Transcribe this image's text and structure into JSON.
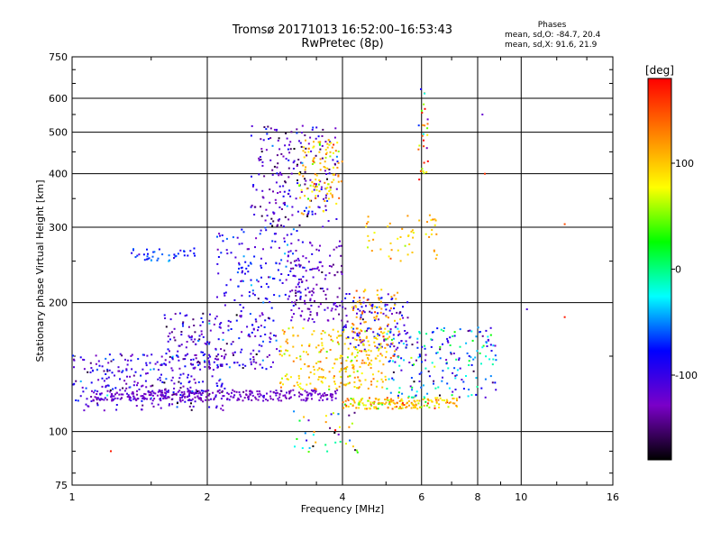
{
  "header": {
    "title": "Tromsø 20171013 16:52:00–16:53:43",
    "subtitle": "RwPretec (8p)",
    "stats_title": "Phases",
    "stats_line1": "mean, sd,O: -84.7, 20.4",
    "stats_line2": "mean, sd,X:  91.6, 21.9"
  },
  "chart_data": {
    "type": "scatter",
    "title": "Tromsø 20171013 16:52:00–16:53:43",
    "subtitle": "RwPretec (8p)",
    "xlabel": "Frequency [MHz]",
    "ylabel": "Stationary phase Virtual Height [km]",
    "x_scale": "log",
    "y_scale": "log",
    "xlim": [
      1,
      16
    ],
    "ylim": [
      75,
      750
    ],
    "grid": true,
    "x_ticks": [
      1,
      2,
      4,
      6,
      8,
      10,
      16
    ],
    "y_ticks": [
      75,
      100,
      200,
      300,
      400,
      500,
      600,
      750
    ],
    "x_tick_labels": [
      "1",
      "2",
      "4",
      "6",
      "8",
      "10",
      "16"
    ],
    "y_tick_labels": [
      "75",
      "100",
      "200",
      "300",
      "400",
      "500",
      "600",
      "750"
    ],
    "colorbar": {
      "label": "[deg]",
      "range": [
        -180,
        180
      ],
      "ticks": [
        100,
        0,
        -100
      ],
      "tick_labels": [
        "100",
        "0",
        "-100"
      ]
    },
    "clusters": [
      {
        "fmin": 1.0,
        "fmax": 2.2,
        "hmin": 112,
        "hmax": 152,
        "phase_mean": -110,
        "phase_sd": 30,
        "count": 280
      },
      {
        "fmin": 1.1,
        "fmax": 3.9,
        "hmin": 118,
        "hmax": 125,
        "phase_mean": -125,
        "phase_sd": 10,
        "count": 320
      },
      {
        "fmin": 1.6,
        "fmax": 2.9,
        "hmin": 140,
        "hmax": 190,
        "phase_mean": -110,
        "phase_sd": 30,
        "count": 200
      },
      {
        "fmin": 1.35,
        "fmax": 1.9,
        "hmin": 250,
        "hmax": 268,
        "phase_mean": -70,
        "phase_sd": 15,
        "count": 40
      },
      {
        "fmin": 2.1,
        "fmax": 3.3,
        "hmin": 190,
        "hmax": 300,
        "phase_mean": -90,
        "phase_sd": 25,
        "count": 140
      },
      {
        "fmin": 2.5,
        "fmax": 3.9,
        "hmin": 300,
        "hmax": 520,
        "phase_mean": -120,
        "phase_sd": 30,
        "count": 210
      },
      {
        "fmin": 3.2,
        "fmax": 4.0,
        "hmin": 320,
        "hmax": 480,
        "phase_mean": 95,
        "phase_sd": 25,
        "count": 110
      },
      {
        "fmin": 3.0,
        "fmax": 4.0,
        "hmin": 180,
        "hmax": 280,
        "phase_mean": -125,
        "phase_sd": 15,
        "count": 140
      },
      {
        "fmin": 2.9,
        "fmax": 5.0,
        "hmin": 125,
        "hmax": 175,
        "phase_mean": 95,
        "phase_sd": 25,
        "count": 240
      },
      {
        "fmin": 4.0,
        "fmax": 5.6,
        "hmin": 155,
        "hmax": 210,
        "phase_mean": -105,
        "phase_sd": 25,
        "count": 110
      },
      {
        "fmin": 4.2,
        "fmax": 5.4,
        "hmin": 148,
        "hmax": 215,
        "phase_mean": 115,
        "phase_sd": 20,
        "count": 90
      },
      {
        "fmin": 4.0,
        "fmax": 7.2,
        "hmin": 113,
        "hmax": 120,
        "phase_mean": 100,
        "phase_sd": 30,
        "count": 170
      },
      {
        "fmin": 5.0,
        "fmax": 8.8,
        "hmin": 120,
        "hmax": 175,
        "phase_mean": -60,
        "phase_sd": 55,
        "count": 200
      },
      {
        "fmin": 3.1,
        "fmax": 4.4,
        "hmin": 88,
        "hmax": 112,
        "phase_mean": 0,
        "phase_sd": 120,
        "count": 40
      },
      {
        "fmin": 4.5,
        "fmax": 6.5,
        "hmin": 250,
        "hmax": 320,
        "phase_mean": 100,
        "phase_sd": 20,
        "count": 50
      },
      {
        "fmin": 5.9,
        "fmax": 6.2,
        "hmin": 380,
        "hmax": 640,
        "phase_mean": 60,
        "phase_sd": 110,
        "count": 30
      }
    ],
    "isolated_points": [
      {
        "x": 1.22,
        "y": 90,
        "phase": 170
      },
      {
        "x": 8.2,
        "y": 550,
        "phase": -120
      },
      {
        "x": 12.5,
        "y": 305,
        "phase": 150
      },
      {
        "x": 12.5,
        "y": 185,
        "phase": 170
      },
      {
        "x": 10.3,
        "y": 193,
        "phase": -110
      },
      {
        "x": 8.3,
        "y": 400,
        "phase": 160
      }
    ]
  },
  "colors": {
    "scale": [
      "#000000",
      "#7a00c8",
      "#0000ff",
      "#00ffff",
      "#00ff00",
      "#ffff00",
      "#ff8000",
      "#ff0000"
    ]
  }
}
